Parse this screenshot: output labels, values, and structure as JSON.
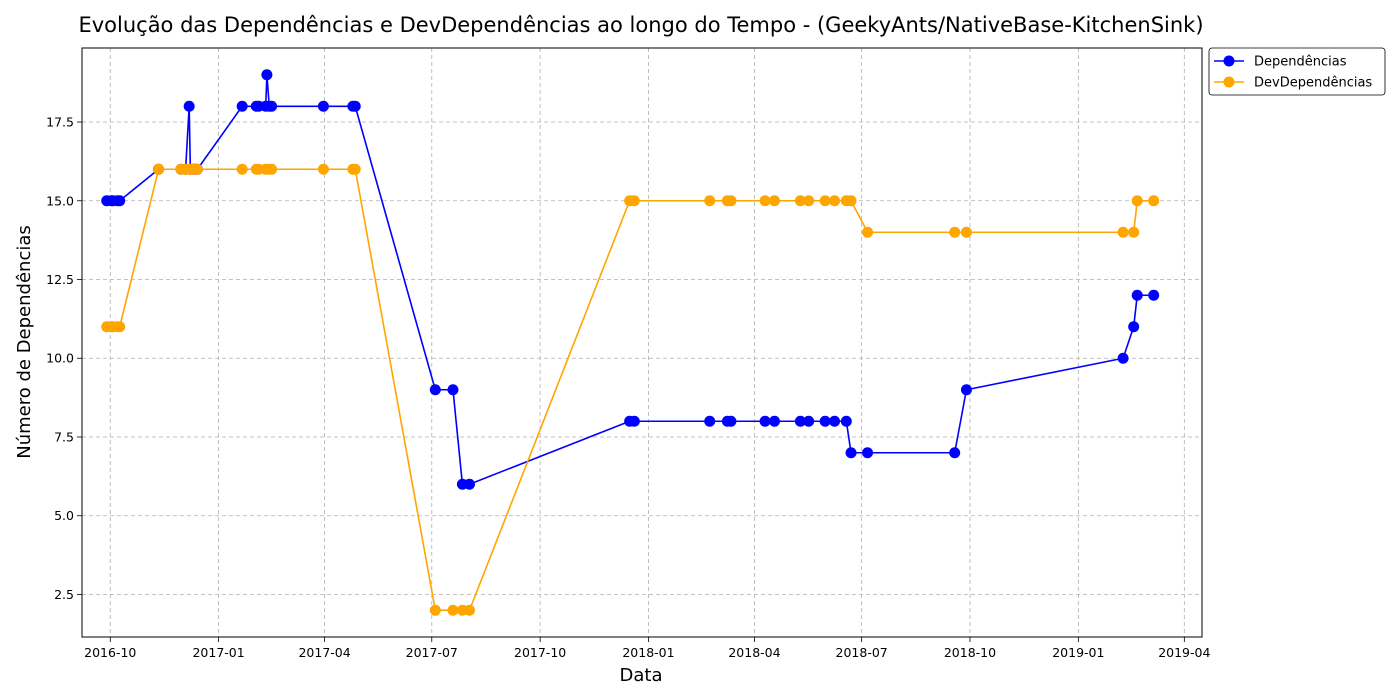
{
  "chart_data": {
    "type": "line",
    "title": "Evolução das Dependências e DevDependências ao longo do Tempo - (GeekyAnts/NativeBase-KitchenSink)",
    "xlabel": "Data",
    "ylabel": "Número de Dependências",
    "xlim": [
      "2016-09-07",
      "2019-04-16"
    ],
    "ylim": [
      1.15,
      19.85
    ],
    "x_ticks": [
      "2016-10",
      "2017-01",
      "2017-04",
      "2017-07",
      "2017-10",
      "2018-01",
      "2018-04",
      "2018-07",
      "2018-10",
      "2019-01",
      "2019-04"
    ],
    "y_ticks": [
      "2.5",
      "5.0",
      "7.5",
      "10.0",
      "12.5",
      "15.0",
      "17.5"
    ],
    "grid": true,
    "legend_position": "outside top-right",
    "series": [
      {
        "name": "Dependências",
        "color": "#0000ff",
        "points": [
          [
            "2016-09-28",
            15
          ],
          [
            "2016-10-02",
            15
          ],
          [
            "2016-10-03",
            15
          ],
          [
            "2016-10-07",
            15
          ],
          [
            "2016-10-09",
            15
          ],
          [
            "2016-11-11",
            16
          ],
          [
            "2016-11-30",
            16
          ],
          [
            "2016-12-04",
            16
          ],
          [
            "2016-12-07",
            18
          ],
          [
            "2016-12-08",
            16
          ],
          [
            "2016-12-10",
            16
          ],
          [
            "2016-12-12",
            16
          ],
          [
            "2016-12-14",
            16
          ],
          [
            "2017-01-21",
            18
          ],
          [
            "2017-02-02",
            18
          ],
          [
            "2017-02-04",
            18
          ],
          [
            "2017-02-10",
            18
          ],
          [
            "2017-02-11",
            19
          ],
          [
            "2017-02-13",
            18
          ],
          [
            "2017-02-15",
            18
          ],
          [
            "2017-03-31",
            18
          ],
          [
            "2017-04-25",
            18
          ],
          [
            "2017-04-27",
            18
          ],
          [
            "2017-07-04",
            9
          ],
          [
            "2017-07-19",
            9
          ],
          [
            "2017-07-27",
            6
          ],
          [
            "2017-08-02",
            6
          ],
          [
            "2017-12-16",
            8
          ],
          [
            "2017-12-20",
            8
          ],
          [
            "2018-02-22",
            8
          ],
          [
            "2018-03-09",
            8
          ],
          [
            "2018-03-12",
            8
          ],
          [
            "2018-04-10",
            8
          ],
          [
            "2018-04-18",
            8
          ],
          [
            "2018-05-10",
            8
          ],
          [
            "2018-05-17",
            8
          ],
          [
            "2018-05-31",
            8
          ],
          [
            "2018-06-08",
            8
          ],
          [
            "2018-06-18",
            8
          ],
          [
            "2018-06-22",
            7
          ],
          [
            "2018-07-06",
            7
          ],
          [
            "2018-09-18",
            7
          ],
          [
            "2018-09-28",
            9
          ],
          [
            "2019-02-08",
            10
          ],
          [
            "2019-02-17",
            11
          ],
          [
            "2019-02-20",
            12
          ],
          [
            "2019-03-06",
            12
          ]
        ]
      },
      {
        "name": "DevDependências",
        "color": "#ffa500",
        "points": [
          [
            "2016-09-28",
            11
          ],
          [
            "2016-10-02",
            11
          ],
          [
            "2016-10-03",
            11
          ],
          [
            "2016-10-07",
            11
          ],
          [
            "2016-10-09",
            11
          ],
          [
            "2016-11-11",
            16
          ],
          [
            "2016-11-30",
            16
          ],
          [
            "2016-12-04",
            16
          ],
          [
            "2016-12-07",
            16
          ],
          [
            "2016-12-08",
            16
          ],
          [
            "2016-12-10",
            16
          ],
          [
            "2016-12-12",
            16
          ],
          [
            "2016-12-14",
            16
          ],
          [
            "2017-01-21",
            16
          ],
          [
            "2017-02-02",
            16
          ],
          [
            "2017-02-04",
            16
          ],
          [
            "2017-02-10",
            16
          ],
          [
            "2017-02-11",
            16
          ],
          [
            "2017-02-13",
            16
          ],
          [
            "2017-02-15",
            16
          ],
          [
            "2017-03-31",
            16
          ],
          [
            "2017-04-25",
            16
          ],
          [
            "2017-04-27",
            16
          ],
          [
            "2017-07-04",
            2
          ],
          [
            "2017-07-19",
            2
          ],
          [
            "2017-07-27",
            2
          ],
          [
            "2017-08-02",
            2
          ],
          [
            "2017-12-16",
            15
          ],
          [
            "2017-12-20",
            15
          ],
          [
            "2018-02-22",
            15
          ],
          [
            "2018-03-09",
            15
          ],
          [
            "2018-03-12",
            15
          ],
          [
            "2018-04-10",
            15
          ],
          [
            "2018-04-18",
            15
          ],
          [
            "2018-05-10",
            15
          ],
          [
            "2018-05-17",
            15
          ],
          [
            "2018-05-31",
            15
          ],
          [
            "2018-06-08",
            15
          ],
          [
            "2018-06-18",
            15
          ],
          [
            "2018-06-22",
            15
          ],
          [
            "2018-07-06",
            14
          ],
          [
            "2018-09-18",
            14
          ],
          [
            "2018-09-28",
            14
          ],
          [
            "2019-02-08",
            14
          ],
          [
            "2019-02-17",
            14
          ],
          [
            "2019-02-20",
            15
          ],
          [
            "2019-03-06",
            15
          ]
        ]
      }
    ]
  }
}
